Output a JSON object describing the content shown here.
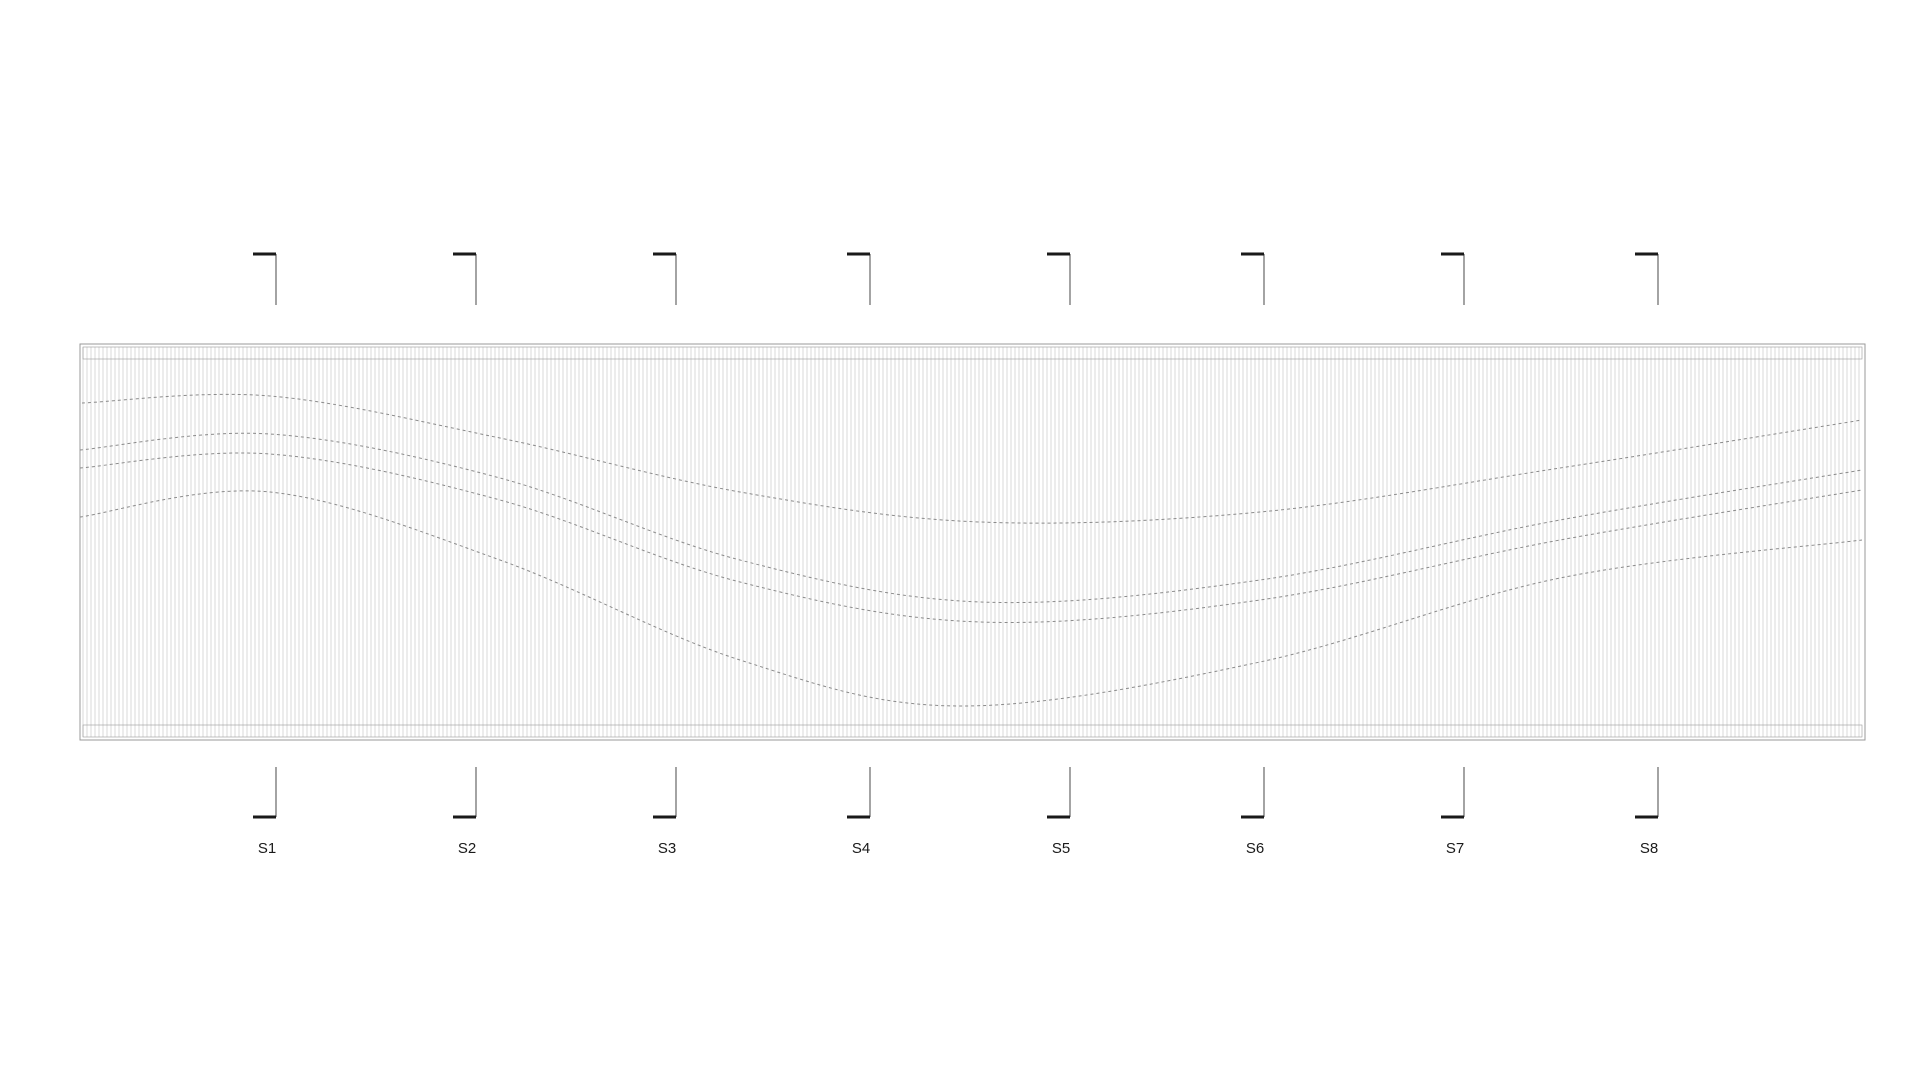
{
  "sections": [
    {
      "label": "S1"
    },
    {
      "label": "S2"
    },
    {
      "label": "S3"
    },
    {
      "label": "S4"
    },
    {
      "label": "S5"
    },
    {
      "label": "S6"
    },
    {
      "label": "S7"
    },
    {
      "label": "S8"
    }
  ],
  "colors": {
    "background": "#ffffff",
    "section_mark": "#1a1a1a",
    "panel_lines": "#9a9a9a",
    "curves": "#8a8a8a"
  }
}
